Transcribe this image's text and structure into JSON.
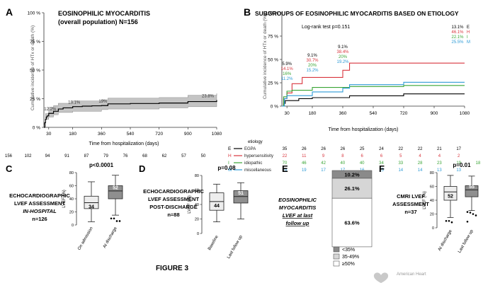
{
  "figure_label": "FIGURE 3",
  "logo_text": "American Heart",
  "km_ticks": [
    30,
    180,
    360,
    540,
    720,
    900,
    1080
  ],
  "km_yticks": [
    "0 %",
    "25 %",
    "50 %",
    "75 %",
    "100 %"
  ],
  "km_xlabel": "Time from hospitalization (days)",
  "km_ylabel": "Cumulative incidence of HTx or death (%)",
  "panel_a": {
    "letter": "A",
    "title_line1": "EOSINOPHILIC MYOCARDITIS",
    "title_line2": "(overall population) N=156",
    "risk_numbers": [
      "156",
      "102",
      "94",
      "91",
      "87",
      "79",
      "76",
      "68",
      "62",
      "57",
      "50"
    ]
  },
  "panel_b": {
    "letter": "B",
    "title": "SUBGROUPS OF EOSINOPHILIC MYOCARDITIS BASED ON ETIOLOGY",
    "logrank": "Log-rank test p=0.151",
    "table_header": "etiology",
    "risk_rows": [
      {
        "code": "E",
        "name": "EGPA",
        "color": "#000000",
        "values": [
          "35",
          "26",
          "26",
          "26",
          "25",
          "24",
          "22",
          "22",
          "21",
          "17"
        ]
      },
      {
        "code": "H",
        "name": "hypersensitivity",
        "color": "#d9363e",
        "values": [
          "22",
          "11",
          "9",
          "8",
          "6",
          "6",
          "5",
          "4",
          "4",
          "2"
        ]
      },
      {
        "code": "I",
        "name": "idiopathic",
        "color": "#3aa535",
        "values": [
          "70",
          "46",
          "42",
          "40",
          "40",
          "34",
          "33",
          "28",
          "23",
          "19",
          "18"
        ]
      },
      {
        "code": "M",
        "name": "miscellaneous",
        "color": "#2e9bd6",
        "values": [
          "29",
          "19",
          "17",
          "17",
          "16",
          "15",
          "14",
          "14",
          "13",
          "13"
        ]
      }
    ]
  },
  "chart_data": [
    {
      "type": "line",
      "title": "EOSINOPHILIC MYOCARDITIS (overall population) N=156",
      "xlabel": "Time from hospitalization (days)",
      "ylabel": "Cumulative incidence of HTx or death (%)",
      "xlim": [
        0,
        1080
      ],
      "ylim": [
        0,
        100
      ],
      "series": [
        {
          "points": [
            [
              0,
              0
            ],
            [
              5,
              4
            ],
            [
              10,
              7
            ],
            [
              15,
              9
            ],
            [
              20,
              10
            ],
            [
              30,
              12.2
            ],
            [
              60,
              14
            ],
            [
              90,
              16
            ],
            [
              120,
              17
            ],
            [
              180,
              18.1
            ],
            [
              240,
              18.5
            ],
            [
              300,
              18.8
            ],
            [
              360,
              19
            ],
            [
              400,
              20.5
            ],
            [
              540,
              20.8
            ],
            [
              720,
              21.2
            ],
            [
              900,
              22.5
            ],
            [
              1080,
              23.8
            ]
          ],
          "ci_upper": [
            [
              0,
              0
            ],
            [
              10,
              12
            ],
            [
              30,
              17.5
            ],
            [
              60,
              19
            ],
            [
              90,
              21
            ],
            [
              180,
              23
            ],
            [
              360,
              24
            ],
            [
              400,
              25.5
            ],
            [
              720,
              26
            ],
            [
              900,
              28
            ],
            [
              1080,
              29.5
            ]
          ],
          "ci_lower": [
            [
              0,
              0
            ],
            [
              10,
              2
            ],
            [
              30,
              7
            ],
            [
              60,
              9
            ],
            [
              90,
              11
            ],
            [
              180,
              13
            ],
            [
              360,
              14
            ],
            [
              400,
              15.5
            ],
            [
              720,
              16
            ],
            [
              900,
              17
            ],
            [
              1080,
              18
            ]
          ]
        }
      ],
      "annotations": [
        {
          "x": 30,
          "y": 12.2,
          "text": "12.2%"
        },
        {
          "x": 180,
          "y": 18.1,
          "text": "18.1%"
        },
        {
          "x": 360,
          "y": 19,
          "text": "19%"
        },
        {
          "x": 1080,
          "y": 23.8,
          "text": "23.8%"
        }
      ]
    },
    {
      "type": "line",
      "title": "SUBGROUPS OF EOSINOPHILIC MYOCARDITIS BASED ON ETIOLOGY",
      "xlabel": "Time from hospitalization (days)",
      "ylabel": "Cumulative incidence of HTx or death (%)",
      "xlim": [
        0,
        1080
      ],
      "ylim": [
        0,
        100
      ],
      "series": [
        {
          "name": "EGPA",
          "color": "#000000",
          "points": [
            [
              0,
              0
            ],
            [
              10,
              3
            ],
            [
              20,
              5.9
            ],
            [
              100,
              8
            ],
            [
              180,
              9.1
            ],
            [
              360,
              9.1
            ],
            [
              400,
              11
            ],
            [
              720,
              13.1
            ],
            [
              1080,
              13.1
            ]
          ]
        },
        {
          "name": "hypersensitivity",
          "color": "#d9363e",
          "points": [
            [
              0,
              0
            ],
            [
              10,
              8
            ],
            [
              30,
              14.1
            ],
            [
              60,
              24
            ],
            [
              120,
              30.7
            ],
            [
              180,
              30.7
            ],
            [
              360,
              38.4
            ],
            [
              400,
              46.1
            ],
            [
              1080,
              46.1
            ]
          ]
        },
        {
          "name": "idiopathic",
          "color": "#3aa535",
          "points": [
            [
              0,
              0
            ],
            [
              10,
              10
            ],
            [
              30,
              16
            ],
            [
              60,
              17
            ],
            [
              180,
              20
            ],
            [
              360,
              20
            ],
            [
              400,
              21
            ],
            [
              720,
              22.1
            ],
            [
              1080,
              22.1
            ]
          ]
        },
        {
          "name": "miscellaneous",
          "color": "#2e9bd6",
          "points": [
            [
              0,
              0
            ],
            [
              15,
              8
            ],
            [
              30,
              11.2
            ],
            [
              180,
              15.2
            ],
            [
              360,
              19.2
            ],
            [
              400,
              23
            ],
            [
              720,
              25.5
            ],
            [
              1080,
              25.5
            ]
          ]
        }
      ],
      "labels": [
        {
          "x": 30,
          "lines": [
            "5.9%",
            "14.1%",
            "16%",
            "11.2%"
          ]
        },
        {
          "x": 180,
          "lines": [
            "9.1%",
            "30.7%",
            "20%",
            "15.2%"
          ]
        },
        {
          "x": 360,
          "lines": [
            "9.1%",
            "38.4%",
            "20%",
            "19.2%"
          ]
        },
        {
          "x": 1080,
          "lines": [
            "13.1%",
            "46.1%",
            "22.1%",
            "25.5%"
          ]
        }
      ],
      "end_codes": [
        "E",
        "H",
        "I",
        "M"
      ]
    },
    {
      "type": "box",
      "letter": "C",
      "caption": [
        "ECHOCARDIOGRAPHIC",
        "LVEF ASSESSMENT",
        "IN-HOSPITAL",
        "n=126"
      ],
      "pvalue": "p<0.0001",
      "ylabel": "LVEF (%)",
      "ylim": [
        0,
        80
      ],
      "yticks": [
        "0",
        "20",
        "40",
        "60",
        "80"
      ],
      "boxes": [
        {
          "label": "On admission",
          "color": "#eeeeee",
          "median": 34,
          "q1": 25,
          "q3": 44,
          "min": 5,
          "max": 66,
          "median_label": "34",
          "outliers": []
        },
        {
          "label": "At discharge",
          "color": "#8f8f8f",
          "median": 52,
          "q1": 40,
          "q3": 60,
          "min": 15,
          "max": 76,
          "median_label": "52",
          "outliers": [
            10,
            10,
            6,
            6
          ]
        }
      ]
    },
    {
      "type": "box",
      "letter": "D",
      "caption": [
        "ECHOCARDIOGRAPHIC",
        "LVEF ASSESSMENT",
        "POST-DISCHARGE",
        "n=88"
      ],
      "pvalue": "p=0.08",
      "ylabel": "LVEF (%)",
      "ylim": [
        0,
        80
      ],
      "yticks": [
        "0",
        "20",
        "40",
        "60",
        "80"
      ],
      "boxes": [
        {
          "label": "Baseline",
          "color": "#eeeeee",
          "median": 44,
          "q1": 32,
          "q3": 56,
          "min": 16,
          "max": 68,
          "median_label": "44",
          "outliers": []
        },
        {
          "label": "Last follow up",
          "color": "#8f8f8f",
          "median": 51,
          "q1": 42,
          "q3": 59,
          "min": 20,
          "max": 70,
          "median_label": "51",
          "outliers": []
        }
      ]
    },
    {
      "type": "bar",
      "letter": "E",
      "caption": [
        "EOSINOPHILIC",
        "MYOCARDITIS",
        "LVEF at last",
        "follow up"
      ],
      "categories": [
        "<35%",
        "35-49%",
        "≥50%"
      ],
      "values": [
        10.2,
        26.1,
        63.6
      ],
      "labels": [
        "10.2%",
        "26.1%",
        "63.6%"
      ],
      "colors": [
        "#8a8a8a",
        "#d6d6d6",
        "#ffffff"
      ],
      "legend": [
        "<35%",
        "35-49%",
        "≥50%"
      ]
    },
    {
      "type": "box",
      "letter": "F",
      "caption": [
        "CMRI LVEF",
        "ASSESSMENT",
        "n=37"
      ],
      "pvalue": "p=0.01",
      "ylabel": "LVEF (%)",
      "ylim": [
        0,
        80
      ],
      "yticks": [
        "0",
        "20",
        "40",
        "60",
        "80"
      ],
      "boxes": [
        {
          "label": "At discharge",
          "color": "#eeeeee",
          "median": 52,
          "q1": 40,
          "q3": 60,
          "min": 15,
          "max": 76,
          "median_label": "52",
          "outliers": [
            10,
            10,
            8
          ]
        },
        {
          "label": "Last follow up",
          "color": "#8f8f8f",
          "median": 55,
          "q1": 45,
          "q3": 61,
          "min": 25,
          "max": 75,
          "median_label": "55",
          "outliers": [
            23,
            22,
            20,
            18,
            12
          ]
        }
      ]
    }
  ]
}
